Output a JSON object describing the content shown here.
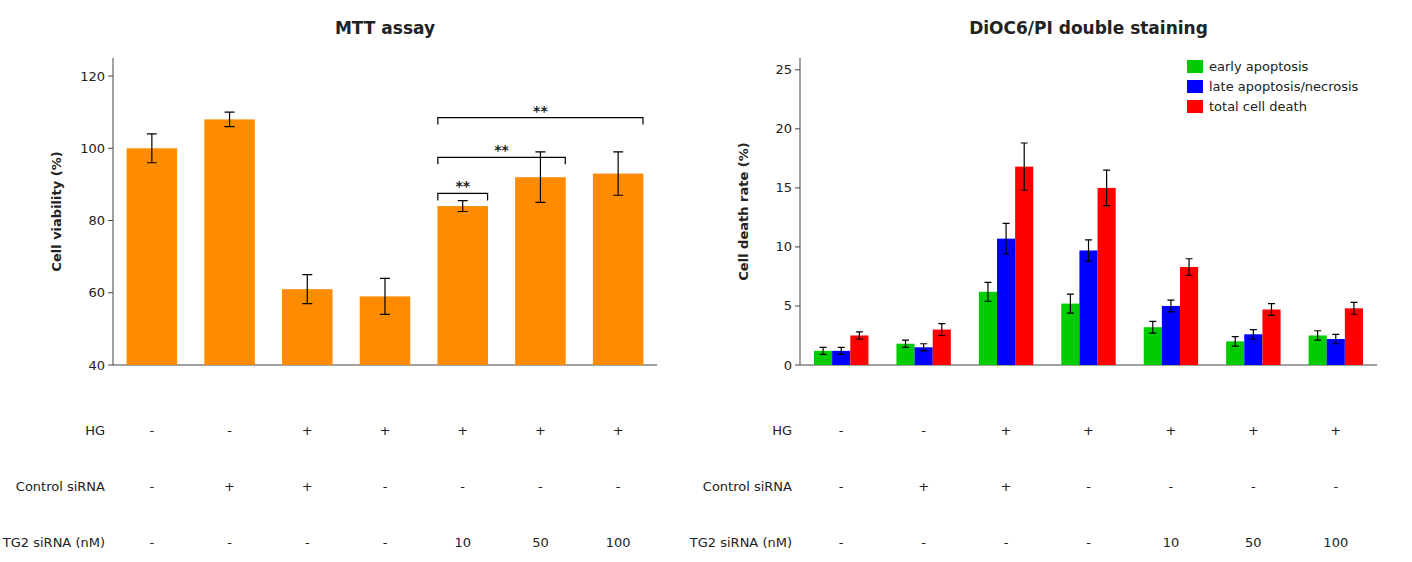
{
  "chart_data": [
    {
      "type": "bar",
      "title": "MTT assay",
      "y_label": "Cell viability (%)",
      "categories": [
        null,
        null,
        null,
        null,
        null,
        null,
        null
      ],
      "values": [
        100,
        108,
        61,
        59,
        84,
        92,
        93
      ],
      "errors": [
        4,
        2,
        4,
        5,
        1.5,
        7,
        6
      ],
      "color": "#FF8C00",
      "ylim": [
        40,
        125
      ],
      "yticks": [
        40,
        60,
        80,
        100,
        120
      ],
      "grid": false,
      "label_rows": [
        {
          "name": "HG",
          "labels": [
            "-",
            "-",
            "+",
            "+",
            "+",
            "+",
            "+"
          ]
        },
        {
          "name": "Control siRNA",
          "labels": [
            "-",
            "+",
            "+",
            "-",
            "-",
            "-",
            "-"
          ]
        },
        {
          "name": "TG2 siRNA (nM)",
          "labels": [
            "-",
            "-",
            "-",
            "-",
            "10",
            "50",
            "100"
          ]
        }
      ],
      "annotations": [
        {
          "text": "**",
          "from": 4,
          "to": 4,
          "y": 87.5
        },
        {
          "text": "**",
          "from": 4,
          "to": 5,
          "y": 97.5
        },
        {
          "text": "**",
          "from": 4,
          "to": 6,
          "y": 108.5
        }
      ]
    },
    {
      "type": "bar",
      "title": "DiOC6/PI double staining",
      "y_label": "Cell death rate (%)",
      "categories": [
        null,
        null,
        null,
        null,
        null,
        null,
        null
      ],
      "series": [
        {
          "name": "early apoptosis",
          "color": "#00CC00",
          "values": [
            1.2,
            1.8,
            6.2,
            5.2,
            3.2,
            2.0,
            2.5
          ],
          "errors": [
            0.3,
            0.3,
            0.8,
            0.8,
            0.5,
            0.4,
            0.4
          ]
        },
        {
          "name": "late apoptosis/necrosis",
          "color": "#0000FF",
          "values": [
            1.2,
            1.5,
            10.7,
            9.7,
            5.0,
            2.6,
            2.2
          ],
          "errors": [
            0.3,
            0.3,
            1.3,
            0.9,
            0.5,
            0.4,
            0.4
          ]
        },
        {
          "name": "total cell death",
          "color": "#FF0000",
          "values": [
            2.5,
            3.0,
            16.8,
            15.0,
            8.3,
            4.7,
            4.8
          ],
          "errors": [
            0.3,
            0.5,
            2.0,
            1.5,
            0.7,
            0.5,
            0.5
          ]
        }
      ],
      "ylim": [
        0,
        26
      ],
      "yticks": [
        0,
        5,
        10,
        15,
        20,
        25
      ],
      "grid": false,
      "legend": "upper right",
      "label_rows": [
        {
          "name": "HG",
          "labels": [
            "-",
            "-",
            "+",
            "+",
            "+",
            "+",
            "+"
          ]
        },
        {
          "name": "Control siRNA",
          "labels": [
            "-",
            "+",
            "+",
            "-",
            "-",
            "-",
            "-"
          ]
        },
        {
          "name": "TG2 siRNA (nM)",
          "labels": [
            "-",
            "-",
            "-",
            "-",
            "10",
            "50",
            "100"
          ]
        }
      ]
    }
  ]
}
